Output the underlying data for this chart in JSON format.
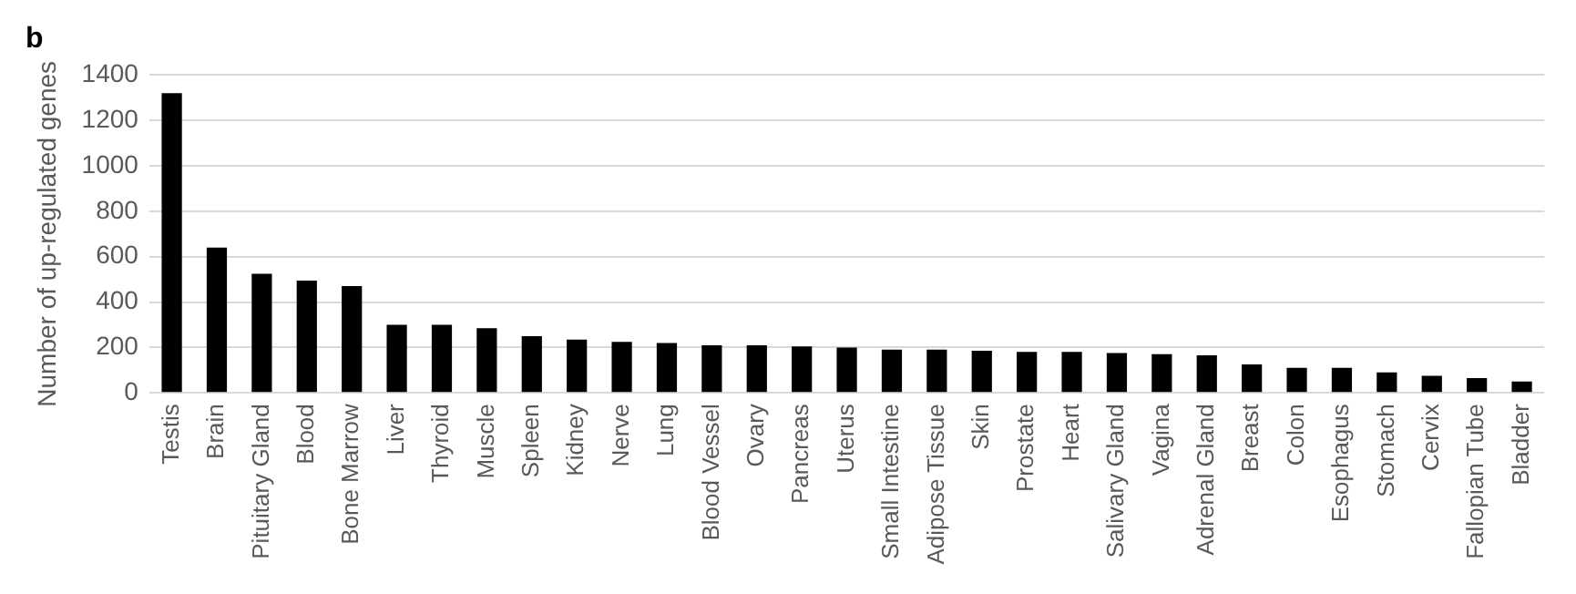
{
  "chart_data": {
    "type": "bar",
    "title": "b",
    "ylabel": "Number of up-regulated genes",
    "categories": [
      "Testis",
      "Brain",
      "Pituitary Gland",
      "Blood",
      "Bone Marrow",
      "Liver",
      "Thyroid",
      "Muscle",
      "Spleen",
      "Kidney",
      "Nerve",
      "Lung",
      "Blood Vessel",
      "Ovary",
      "Pancreas",
      "Uterus",
      "Small Intestine",
      "Adipose Tissue",
      "Skin",
      "Prostate",
      "Heart",
      "Salivary Gland",
      "Vagina",
      "Adrenal Gland",
      "Breast",
      "Colon",
      "Esophagus",
      "Stomach",
      "Cervix",
      "Fallopian Tube",
      "Bladder"
    ],
    "values": [
      1320,
      640,
      525,
      495,
      470,
      300,
      300,
      285,
      250,
      235,
      225,
      220,
      210,
      210,
      205,
      200,
      190,
      190,
      185,
      180,
      180,
      175,
      170,
      165,
      125,
      110,
      110,
      90,
      75,
      65,
      50
    ],
    "color": "#000000",
    "ylim": [
      0,
      1400
    ],
    "yticks": [
      0,
      200,
      400,
      600,
      800,
      1000,
      1200,
      1400
    ],
    "grid": "y"
  }
}
